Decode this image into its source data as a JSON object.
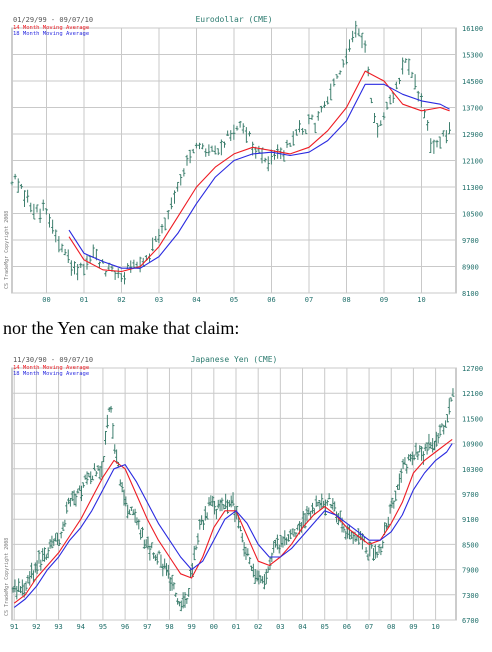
{
  "caption": "nor the Yen can make that claim:",
  "colors": {
    "bars": "#3e7f6e",
    "ma14": "#ee1c24",
    "ma18": "#2a2ae0",
    "grid": "#c9c9c9",
    "title": "#2a7a6e",
    "axis": "#1f6f6a"
  },
  "chart_data": [
    {
      "type": "ohlc",
      "title": "Eurodollar (CME)",
      "date_range": "01/29/99 - 09/07/10",
      "legend": [
        "14 Month Moving Average",
        "18 Month Moving Average"
      ],
      "legend_placement": "top-left",
      "copyright": "CS TradeMgr Copyright 2008",
      "xlim": [
        1999.08,
        2010.92
      ],
      "ylim": [
        8100,
        16100
      ],
      "x_ticks": [
        2000,
        2001,
        2002,
        2003,
        2004,
        2005,
        2006,
        2007,
        2008,
        2009,
        2010
      ],
      "x_tick_labels": [
        "00",
        "01",
        "02",
        "03",
        "04",
        "05",
        "06",
        "07",
        "08",
        "09",
        "10"
      ],
      "y_ticks": [
        8100,
        8900,
        9700,
        10500,
        11300,
        12100,
        12900,
        13700,
        14500,
        15300,
        16100
      ],
      "y_tick_labels": [
        "8100",
        "8900",
        "9700",
        "10500",
        "11300",
        "12100",
        "12900",
        "13700",
        "14500",
        "15300",
        "16100"
      ],
      "grid": true,
      "price": {
        "x": [
          1999.08,
          1999.5,
          2000.0,
          2000.4,
          2000.8,
          2001.2,
          2001.6,
          2002.0,
          2002.4,
          2002.8,
          2003.2,
          2003.6,
          2004.0,
          2004.4,
          2004.8,
          2005.2,
          2005.6,
          2006.0,
          2006.4,
          2006.8,
          2007.2,
          2007.6,
          2008.0,
          2008.2,
          2008.5,
          2008.8,
          2009.0,
          2009.3,
          2009.6,
          2010.0,
          2010.3,
          2010.6,
          2010.75
        ],
        "y": [
          11600,
          10800,
          10500,
          9400,
          8600,
          9300,
          8700,
          8600,
          9000,
          9400,
          10400,
          11700,
          12400,
          12300,
          12700,
          13300,
          12300,
          12000,
          12500,
          13000,
          13300,
          14100,
          15200,
          16000,
          15500,
          12900,
          13300,
          14200,
          15200,
          13800,
          12300,
          12800,
          12900
        ]
      },
      "series": [
        {
          "name": "14 Month Moving Average",
          "x": [
            2000.6,
            2001.0,
            2001.5,
            2002.0,
            2002.5,
            2003.0,
            2003.5,
            2004.0,
            2004.5,
            2005.0,
            2005.5,
            2006.0,
            2006.5,
            2007.0,
            2007.5,
            2008.0,
            2008.5,
            2009.0,
            2009.5,
            2010.0,
            2010.5,
            2010.75
          ],
          "values": [
            9800,
            9100,
            8800,
            8750,
            8900,
            9500,
            10400,
            11300,
            11900,
            12300,
            12500,
            12400,
            12300,
            12500,
            13000,
            13700,
            14800,
            14500,
            13800,
            13600,
            13700,
            13600
          ]
        },
        {
          "name": "18 Month Moving Average",
          "x": [
            2000.6,
            2001.0,
            2001.5,
            2002.0,
            2002.5,
            2003.0,
            2003.5,
            2004.0,
            2004.5,
            2005.0,
            2005.5,
            2006.0,
            2006.5,
            2007.0,
            2007.5,
            2008.0,
            2008.5,
            2009.0,
            2009.5,
            2010.0,
            2010.5,
            2010.75
          ],
          "values": [
            10000,
            9300,
            9050,
            8850,
            8850,
            9200,
            9900,
            10800,
            11600,
            12100,
            12300,
            12350,
            12250,
            12350,
            12700,
            13300,
            14400,
            14400,
            14100,
            13900,
            13800,
            13650
          ]
        }
      ]
    },
    {
      "type": "ohlc",
      "title": "Japanese Yen (CME)",
      "date_range": "11/30/90 - 09/07/10",
      "legend": [
        "14 Month Moving Average",
        "18 Month Moving Average"
      ],
      "legend_placement": "top-left",
      "copyright": "CS TradeMgr Copyright 2008",
      "xlim": [
        1990.9,
        2010.92
      ],
      "ylim": [
        6700,
        12700
      ],
      "x_ticks": [
        1991,
        1992,
        1993,
        1994,
        1995,
        1996,
        1997,
        1998,
        1999,
        2000,
        2001,
        2002,
        2003,
        2004,
        2005,
        2006,
        2007,
        2008,
        2009,
        2010
      ],
      "x_tick_labels": [
        "91",
        "92",
        "93",
        "94",
        "95",
        "96",
        "97",
        "98",
        "99",
        "00",
        "01",
        "02",
        "03",
        "04",
        "05",
        "06",
        "07",
        "08",
        "09",
        "10"
      ],
      "y_ticks": [
        6700,
        7300,
        7900,
        8500,
        9100,
        9700,
        10300,
        10900,
        11500,
        12100,
        12700
      ],
      "y_tick_labels": [
        "6700",
        "7300",
        "7900",
        "8500",
        "9100",
        "9700",
        "10300",
        "10900",
        "11500",
        "12100",
        "12700"
      ],
      "grid": true,
      "price": {
        "x": [
          1990.95,
          1991.5,
          1992.0,
          1992.5,
          1993.0,
          1993.5,
          1994.0,
          1994.5,
          1995.0,
          1995.3,
          1995.6,
          1996.0,
          1996.5,
          1997.0,
          1997.5,
          1998.0,
          1998.5,
          1998.8,
          1999.3,
          1999.8,
          2000.3,
          2000.8,
          2001.3,
          2001.8,
          2002.2,
          2002.7,
          2003.2,
          2003.7,
          2004.2,
          2004.7,
          2005.2,
          2005.6,
          2006.0,
          2006.5,
          2007.0,
          2007.5,
          2008.0,
          2008.5,
          2009.0,
          2009.5,
          2010.0,
          2010.5,
          2010.8
        ],
        "y": [
          7400,
          7500,
          8000,
          8300,
          8600,
          9500,
          9800,
          10200,
          10300,
          11900,
          10600,
          9500,
          9000,
          8400,
          8200,
          7700,
          7000,
          7200,
          8800,
          9400,
          9300,
          9600,
          8600,
          7800,
          7500,
          8400,
          8500,
          8800,
          9200,
          9400,
          9500,
          9100,
          8700,
          8700,
          8300,
          8400,
          9300,
          10300,
          10600,
          10700,
          11000,
          11400,
          12000
        ]
      },
      "series": [
        {
          "name": "14 Month Moving Average",
          "x": [
            1991.0,
            1991.5,
            1992.0,
            1992.5,
            1993.0,
            1993.5,
            1994.0,
            1994.5,
            1995.0,
            1995.5,
            1996.0,
            1996.5,
            1997.0,
            1997.5,
            1998.0,
            1998.5,
            1999.0,
            1999.5,
            2000.0,
            2000.5,
            2001.0,
            2001.5,
            2002.0,
            2002.5,
            2003.0,
            2003.5,
            2004.0,
            2004.5,
            2005.0,
            2005.5,
            2006.0,
            2006.5,
            2007.0,
            2007.5,
            2008.0,
            2008.5,
            2009.0,
            2009.5,
            2010.0,
            2010.5,
            2010.75
          ],
          "values": [
            7100,
            7300,
            7700,
            8000,
            8300,
            8700,
            9100,
            9600,
            10100,
            10500,
            10300,
            9700,
            9100,
            8600,
            8200,
            7800,
            7700,
            8200,
            8900,
            9300,
            9300,
            8700,
            8100,
            8000,
            8200,
            8500,
            8900,
            9200,
            9400,
            9200,
            8900,
            8700,
            8500,
            8600,
            9000,
            9500,
            10200,
            10500,
            10700,
            10900,
            11000
          ]
        },
        {
          "name": "18 Month Moving Average",
          "x": [
            1991.0,
            1991.5,
            1992.0,
            1992.5,
            1993.0,
            1993.5,
            1994.0,
            1994.5,
            1995.0,
            1995.5,
            1996.0,
            1996.5,
            1997.0,
            1997.5,
            1998.0,
            1998.5,
            1999.0,
            1999.5,
            2000.0,
            2000.5,
            2001.0,
            2001.5,
            2002.0,
            2002.5,
            2003.0,
            2003.5,
            2004.0,
            2004.5,
            2005.0,
            2005.5,
            2006.0,
            2006.5,
            2007.0,
            2007.5,
            2008.0,
            2008.5,
            2009.0,
            2009.5,
            2010.0,
            2010.5,
            2010.75
          ],
          "values": [
            7000,
            7200,
            7500,
            7900,
            8200,
            8600,
            8900,
            9300,
            9800,
            10300,
            10400,
            10000,
            9500,
            9000,
            8600,
            8200,
            7900,
            8100,
            8600,
            9100,
            9300,
            9000,
            8500,
            8200,
            8200,
            8400,
            8700,
            9000,
            9300,
            9200,
            9000,
            8800,
            8600,
            8600,
            8800,
            9200,
            9800,
            10200,
            10500,
            10700,
            10900
          ]
        }
      ]
    }
  ]
}
